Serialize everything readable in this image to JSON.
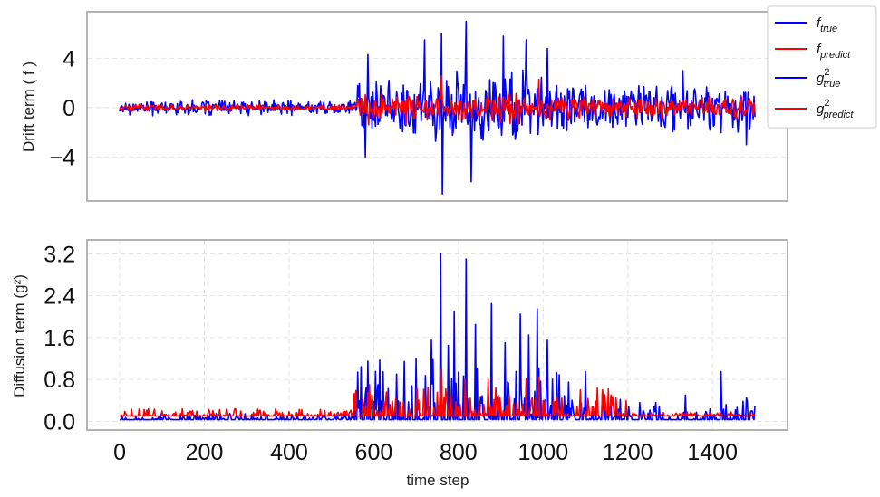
{
  "chart_data": [
    {
      "type": "line",
      "ylabel": "Drift term ( f )",
      "xlabel": "",
      "xlim": [
        -75,
        1575
      ],
      "ylim": [
        -7.5,
        7.7
      ],
      "yticks": [
        4,
        0,
        -4
      ],
      "ytick_labels": [
        "4",
        "0",
        "−4"
      ],
      "grid": true,
      "grid_style": "dashed",
      "series": [
        {
          "name": "f_true",
          "color": "#0000ff",
          "description": "noisy oscillation",
          "segments": [
            {
              "x": [
                0,
                560
              ],
              "amplitude": 0.7
            },
            {
              "x": [
                560,
                700
              ],
              "amplitude": 2.6
            },
            {
              "x": [
                700,
                1000
              ],
              "amplitude": 3.6
            },
            {
              "x": [
                1000,
                1500
              ],
              "amplitude": 2.3
            }
          ],
          "extremes": [
            {
              "x": 585,
              "y": 4.3
            },
            {
              "x": 580,
              "y": -4.0
            },
            {
              "x": 720,
              "y": 5.5
            },
            {
              "x": 760,
              "y": 6.0
            },
            {
              "x": 762,
              "y": -7.0
            },
            {
              "x": 818,
              "y": 7.0
            },
            {
              "x": 830,
              "y": -6.0
            },
            {
              "x": 905,
              "y": 5.8
            },
            {
              "x": 960,
              "y": 5.5
            },
            {
              "x": 1010,
              "y": 4.8
            },
            {
              "x": 1330,
              "y": 3.0
            },
            {
              "x": 1480,
              "y": -3.0
            }
          ]
        },
        {
          "name": "f_predict",
          "color": "#ff0000",
          "segments": [
            {
              "x": [
                0,
                560
              ],
              "amplitude": 0.3
            },
            {
              "x": [
                560,
                1050
              ],
              "amplitude": 1.5
            },
            {
              "x": [
                1050,
                1500
              ],
              "amplitude": 1.1
            }
          ],
          "extremes": [
            {
              "x": 760,
              "y": 2.6
            },
            {
              "x": 990,
              "y": 2.3
            }
          ]
        }
      ]
    },
    {
      "type": "line",
      "ylabel": "Diffusion term (g²)",
      "xlabel": "time step",
      "xlim": [
        -75,
        1575
      ],
      "ylim": [
        -0.15,
        3.45
      ],
      "xticks": [
        0,
        200,
        400,
        600,
        800,
        1000,
        1200,
        1400
      ],
      "xtick_labels": [
        "0",
        "200",
        "400",
        "600",
        "800",
        "1000",
        "1200",
        "1400"
      ],
      "yticks": [
        3.2,
        2.4,
        1.6,
        0.8,
        0.0
      ],
      "ytick_labels": [
        "3.2",
        "2.4",
        "1.6",
        "0.8",
        "0.0"
      ],
      "grid": true,
      "grid_style": "dashed",
      "series": [
        {
          "name": "g²_true",
          "color": "#0000ff",
          "baseline": 0.03,
          "segments": [
            {
              "x": [
                0,
                550
              ],
              "max": 0.12
            },
            {
              "x": [
                550,
                1050
              ],
              "max": 1.2
            },
            {
              "x": [
                1050,
                1500
              ],
              "max": 0.4
            }
          ],
          "peaks": [
            {
              "x": 585,
              "y": 1.15
            },
            {
              "x": 610,
              "y": 0.7
            },
            {
              "x": 700,
              "y": 1.2
            },
            {
              "x": 735,
              "y": 1.55
            },
            {
              "x": 758,
              "y": 3.2
            },
            {
              "x": 775,
              "y": 1.45
            },
            {
              "x": 790,
              "y": 2.1
            },
            {
              "x": 818,
              "y": 3.1
            },
            {
              "x": 840,
              "y": 1.85
            },
            {
              "x": 878,
              "y": 2.25
            },
            {
              "x": 910,
              "y": 1.5
            },
            {
              "x": 945,
              "y": 2.05
            },
            {
              "x": 965,
              "y": 1.65
            },
            {
              "x": 985,
              "y": 2.15
            },
            {
              "x": 1010,
              "y": 1.55
            },
            {
              "x": 1060,
              "y": 0.75
            },
            {
              "x": 1100,
              "y": 0.95
            },
            {
              "x": 1140,
              "y": 0.55
            },
            {
              "x": 1335,
              "y": 0.5
            },
            {
              "x": 1420,
              "y": 0.95
            },
            {
              "x": 1480,
              "y": 0.45
            }
          ]
        },
        {
          "name": "g²_predict",
          "color": "#ff0000",
          "baseline": 0.1,
          "segments": [
            {
              "x": [
                0,
                550
              ],
              "max": 0.14
            },
            {
              "x": [
                550,
                1200
              ],
              "max": 0.55
            },
            {
              "x": [
                1200,
                1500
              ],
              "max": 0.08
            }
          ],
          "peaks": [
            {
              "x": 590,
              "y": 0.7
            },
            {
              "x": 760,
              "y": 1.0
            },
            {
              "x": 815,
              "y": 0.8
            },
            {
              "x": 870,
              "y": 0.8
            },
            {
              "x": 960,
              "y": 0.82
            },
            {
              "x": 990,
              "y": 0.85
            },
            {
              "x": 1140,
              "y": 0.6
            }
          ]
        }
      ]
    }
  ],
  "legend": {
    "placement": "top-right",
    "entries": [
      {
        "base": "f",
        "sup": "",
        "sub": "true",
        "color": "#0000ff"
      },
      {
        "base": "f",
        "sup": "",
        "sub": "predict",
        "color": "#ff0000"
      },
      {
        "base": "g",
        "sup": "2",
        "sub": "true",
        "color": "#0000ff"
      },
      {
        "base": "g",
        "sup": "2",
        "sub": "predict",
        "color": "#ff0000"
      }
    ]
  }
}
